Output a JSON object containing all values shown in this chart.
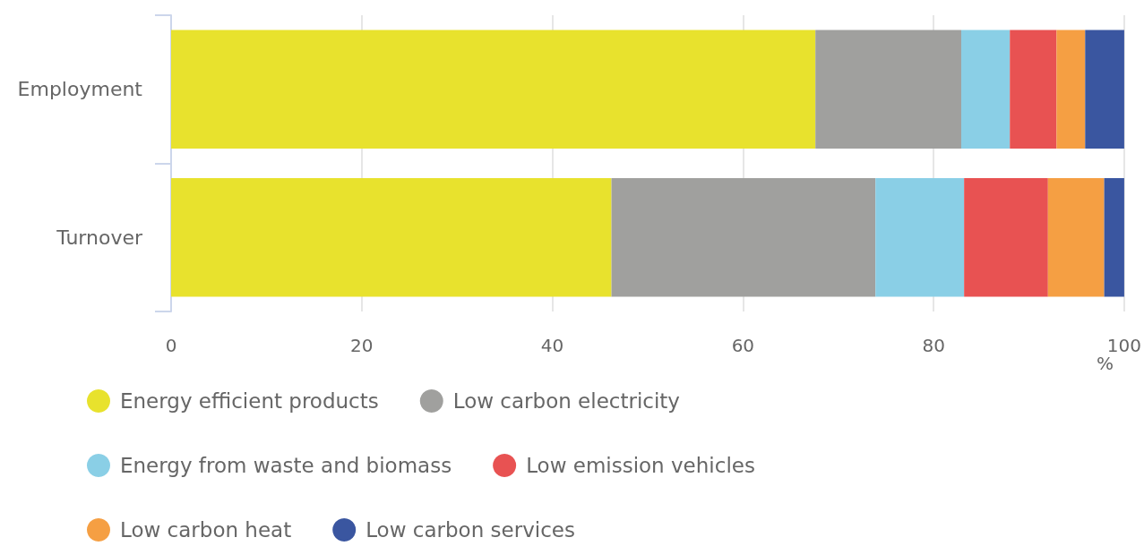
{
  "chart_data": {
    "type": "bar",
    "orientation": "horizontal",
    "stacked": true,
    "categories": [
      "Employment",
      "Turnover"
    ],
    "xlabel": "%",
    "xlim": [
      0,
      100
    ],
    "xticks": [
      0,
      20,
      40,
      60,
      80,
      100
    ],
    "grid": "x",
    "legend": "bottom",
    "series": [
      {
        "name": "Energy efficient products",
        "color": "#e8e22d",
        "values": [
          67.6,
          46.2
        ]
      },
      {
        "name": "Low carbon electricity",
        "color": "#a0a09e",
        "values": [
          15.3,
          27.7
        ]
      },
      {
        "name": "Energy from waste and biomass",
        "color": "#8acfe6",
        "values": [
          5.1,
          9.3
        ]
      },
      {
        "name": "Low emission vehicles",
        "color": "#e85252",
        "values": [
          4.9,
          8.8
        ]
      },
      {
        "name": "Low carbon heat",
        "color": "#f59f43",
        "values": [
          3.0,
          5.9
        ]
      },
      {
        "name": "Low carbon services",
        "color": "#3a56a0",
        "values": [
          4.1,
          2.1
        ]
      }
    ]
  }
}
